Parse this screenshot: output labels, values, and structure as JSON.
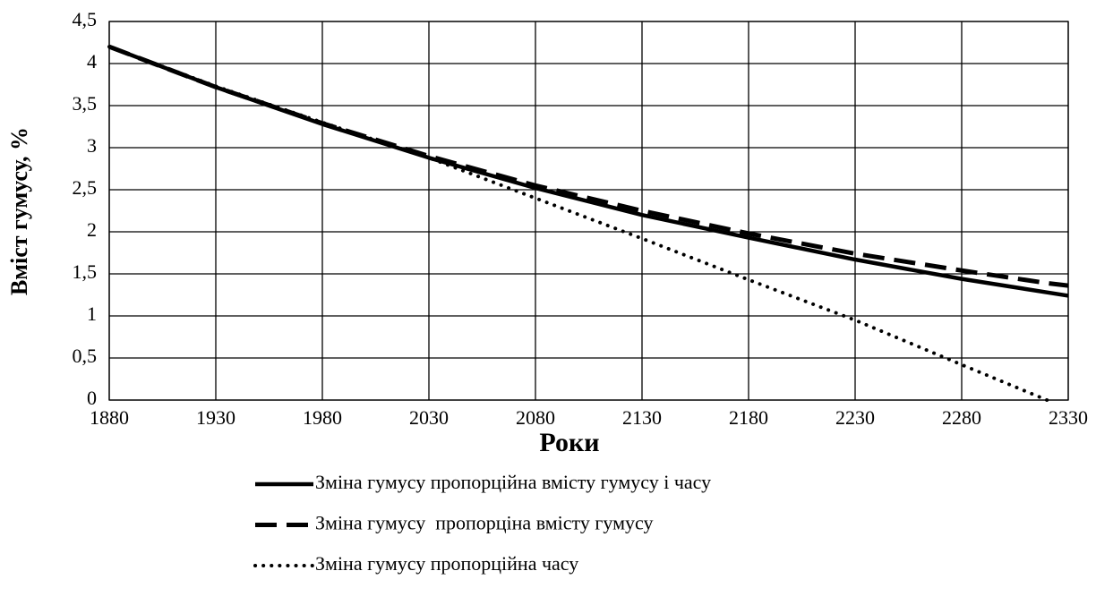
{
  "chart_data": {
    "type": "line",
    "xlabel": "Роки",
    "ylabel": "Вміст гумусу, %",
    "x": [
      1880,
      1930,
      1980,
      2030,
      2080,
      2130,
      2180,
      2230,
      2280,
      2320,
      2330
    ],
    "series": [
      {
        "name": "Зміна гумусу пропорційна вмісту гумусу і часу",
        "color": "#000000",
        "dash": "solid",
        "values": [
          4.2,
          3.72,
          3.28,
          2.88,
          2.52,
          2.2,
          1.93,
          1.67,
          1.44,
          1.28,
          1.24
        ]
      },
      {
        "name": "Зміна гумусу  пропорціна вмісту гумусу",
        "color": "#000000",
        "dash": "dashed",
        "values": [
          4.2,
          3.72,
          3.29,
          2.9,
          2.55,
          2.25,
          1.98,
          1.74,
          1.54,
          1.39,
          1.36
        ]
      },
      {
        "name": "Зміна гумусу пропорційна часу",
        "color": "#000000",
        "dash": "dotted",
        "values": [
          4.2,
          3.73,
          3.3,
          2.88,
          2.4,
          1.92,
          1.43,
          0.95,
          0.42,
          0,
          null
        ]
      }
    ],
    "xlim": [
      1880,
      2330
    ],
    "xticks": [
      1880,
      1930,
      1980,
      2030,
      2080,
      2130,
      2180,
      2230,
      2280,
      2330
    ],
    "ylim": [
      0,
      4.5
    ],
    "yticks": [
      0,
      {
        "value": 0.5,
        "label": "0,5"
      },
      1,
      {
        "value": 1.5,
        "label": "1,5"
      },
      2,
      {
        "value": 2.5,
        "label": "2,5"
      },
      3,
      {
        "value": 3.5,
        "label": "3,5"
      },
      4,
      {
        "value": 4.5,
        "label": "4,5"
      }
    ],
    "grid": true,
    "legend": "bottom"
  }
}
